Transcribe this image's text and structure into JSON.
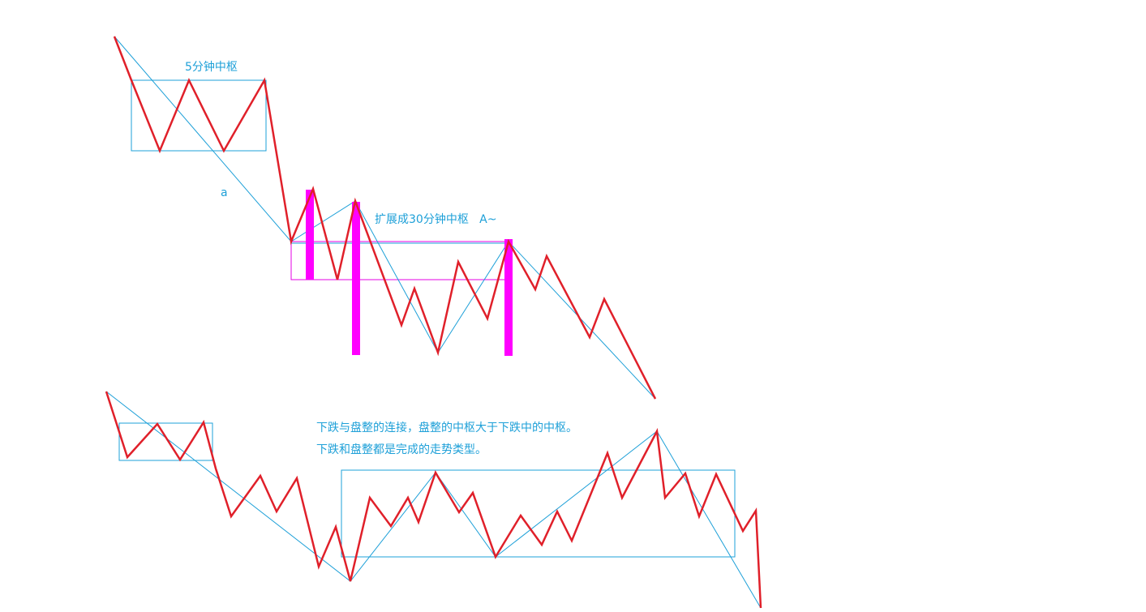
{
  "labels": {
    "zhongshu_5min": "5分钟中枢",
    "a": "a",
    "expand_30min": "扩展成30分钟中枢   A~",
    "note_line1": "下跌与盘整的连接，盘整的中枢大于下跌中的中枢。",
    "note_line2": "下跌和盘整都是完成的走势类型。"
  },
  "colors": {
    "price_line": "#e0202a",
    "trend_line": "#1ea0d8",
    "zhongshu_box": "#1ea0d8",
    "expanded_box": "#e600e6",
    "bars": "#ff00ff",
    "text": "#1ea0d8"
  }
}
